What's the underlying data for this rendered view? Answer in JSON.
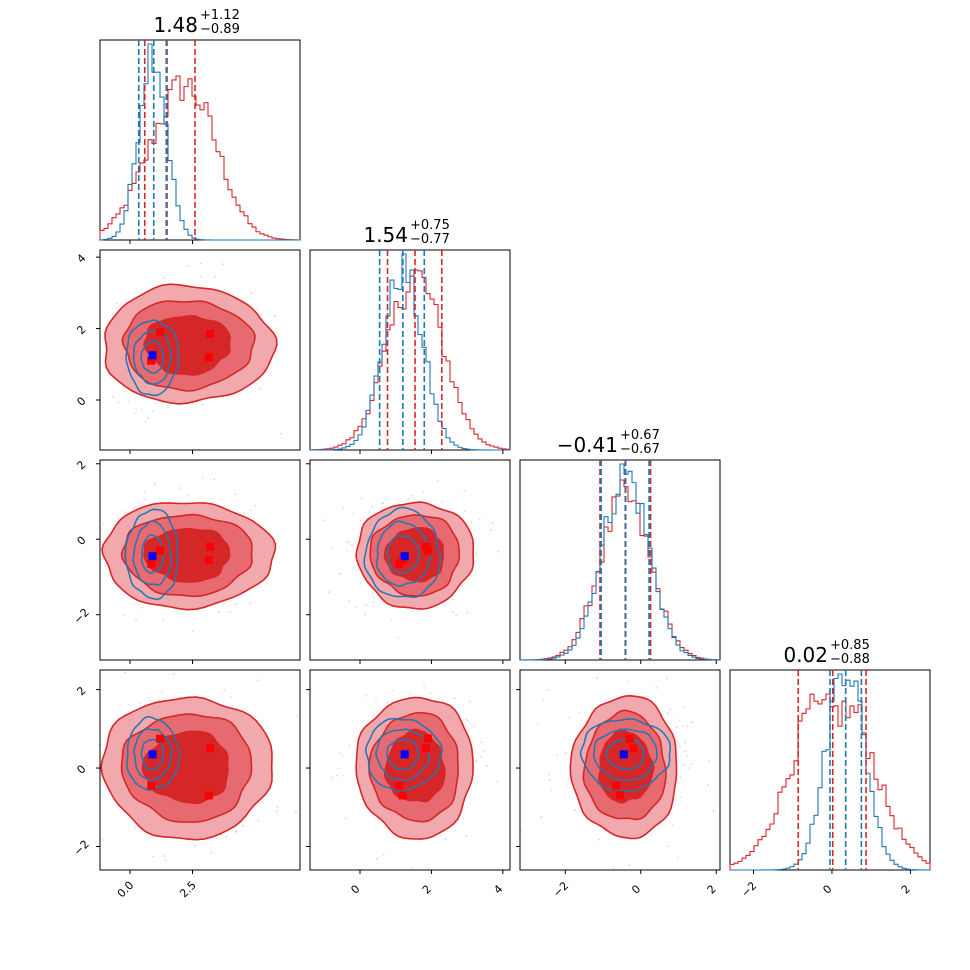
{
  "chart_data": {
    "type": "corner",
    "n_params": 4,
    "series": [
      {
        "color": "#1f77b4"
      },
      {
        "color": "#d62728"
      }
    ],
    "truth_marker_colors": {
      "blue": "#0000ff",
      "red": "#ff0000"
    },
    "titles": [
      {
        "median": "1.48",
        "plus": "+1.12",
        "minus": "−0.89"
      },
      {
        "median": "1.54",
        "plus": "+0.75",
        "minus": "−0.77"
      },
      {
        "median": "−0.41",
        "plus": "+0.67",
        "minus": "−0.67"
      },
      {
        "median": "0.02",
        "plus": "+0.85",
        "minus": "−0.88"
      }
    ],
    "ranges": [
      [
        -1.2,
        6.8
      ],
      [
        -1.4,
        4.2
      ],
      [
        -3.2,
        2.1
      ],
      [
        -2.6,
        2.5
      ]
    ],
    "x_ticks": [
      {
        "values": [
          0.0,
          2.5
        ],
        "labels": [
          "0.0",
          "2.5"
        ]
      },
      {
        "values": [
          0,
          2,
          4
        ],
        "labels": [
          "0",
          "2",
          "4"
        ]
      },
      {
        "values": [
          -2,
          0,
          2
        ],
        "labels": [
          "−2",
          "0",
          "2"
        ]
      },
      {
        "values": [
          -2,
          0,
          2
        ],
        "labels": [
          "−2",
          "0",
          "2"
        ]
      }
    ],
    "y_ticks": [
      null,
      {
        "values": [
          0,
          2,
          4
        ],
        "labels": [
          "0",
          "2",
          "4"
        ]
      },
      {
        "values": [
          -2,
          0,
          2
        ],
        "labels": [
          "−2",
          "0",
          "2"
        ]
      },
      {
        "values": [
          -2,
          0,
          2
        ],
        "labels": [
          "−2",
          "0",
          "2"
        ]
      }
    ],
    "marginals": [
      {
        "blue": {
          "mean": 0.9,
          "sd": 0.55
        },
        "red": {
          "mean": 1.8,
          "sd": 1.3,
          "skew_bump": 0.5
        },
        "blue_quantiles": [
          0.35,
          0.95,
          1.45
        ],
        "red_quantiles": [
          0.59,
          1.48,
          2.6
        ]
      },
      {
        "blue": {
          "mean": 1.2,
          "sd": 0.55
        },
        "red": {
          "mean": 1.55,
          "sd": 0.78
        },
        "blue_quantiles": [
          0.55,
          1.2,
          1.8
        ],
        "red_quantiles": [
          0.77,
          1.54,
          2.29
        ]
      },
      {
        "blue": {
          "mean": -0.4,
          "sd": 0.62
        },
        "red": {
          "mean": -0.41,
          "sd": 0.67
        },
        "blue_quantiles": [
          -1.05,
          -0.4,
          0.22
        ],
        "red_quantiles": [
          -1.08,
          -0.41,
          0.26
        ]
      },
      {
        "blue": {
          "mean": 0.35,
          "sd": 0.48
        },
        "red": {
          "mean": 0.02,
          "sd": 0.86,
          "flat_top": true
        },
        "blue_quantiles": [
          -0.05,
          0.35,
          0.75
        ],
        "red_quantiles": [
          -0.86,
          0.02,
          0.87
        ]
      }
    ],
    "truth_blue": [
      0.9,
      1.25,
      -0.45,
      0.35
    ],
    "truth_red": [
      [
        1.2,
        1.9,
        -0.3,
        0.75
      ],
      [
        0.85,
        1.1,
        -0.65,
        -0.45
      ],
      [
        3.2,
        1.85,
        -0.2,
        0.5
      ],
      [
        3.15,
        1.2,
        -0.55,
        -0.7
      ]
    ]
  }
}
